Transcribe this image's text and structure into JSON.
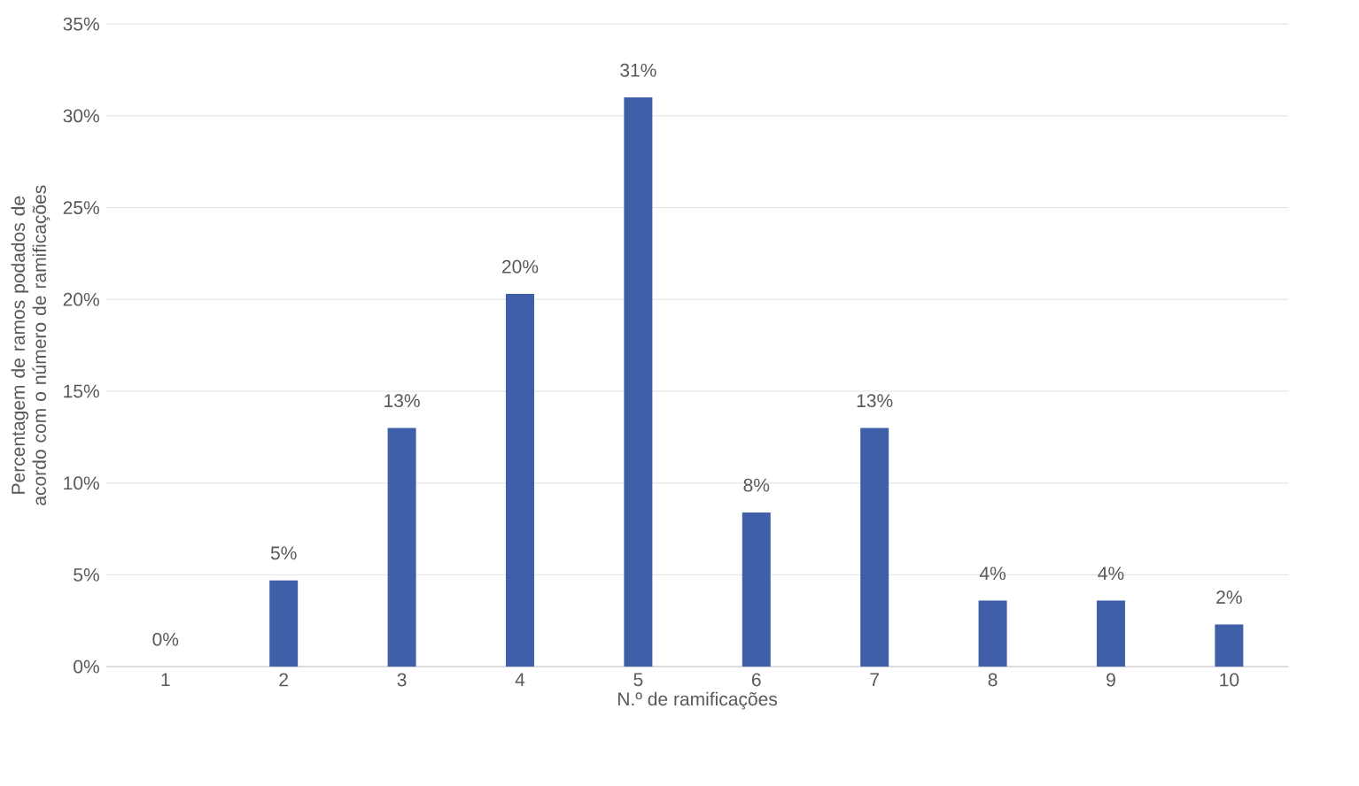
{
  "chart_data": {
    "type": "bar",
    "xlabel": "N.º de ramificações",
    "ylabel": "Percentagem de ramos podados de acordo com o número de ramificações",
    "categories": [
      "1",
      "2",
      "3",
      "4",
      "5",
      "6",
      "7",
      "8",
      "9",
      "10"
    ],
    "values": [
      0,
      4.7,
      13.0,
      20.3,
      31.0,
      8.4,
      13.0,
      3.6,
      3.6,
      2.3
    ],
    "value_labels": [
      "0%",
      "5%",
      "13%",
      "20%",
      "31%",
      "8%",
      "13%",
      "4%",
      "4%",
      "2%"
    ],
    "color": "#3f5fa8",
    "ylim": [
      0,
      35
    ],
    "yticks": [
      {
        "value": 0,
        "label": "0%"
      },
      {
        "value": 5,
        "label": "5%"
      },
      {
        "value": 10,
        "label": "10%"
      },
      {
        "value": 15,
        "label": "15%"
      },
      {
        "value": 20,
        "label": "20%"
      },
      {
        "value": 25,
        "label": "25%"
      },
      {
        "value": 30,
        "label": "30%"
      },
      {
        "value": 35,
        "label": "35%"
      }
    ],
    "grid": "y",
    "legend": false
  }
}
